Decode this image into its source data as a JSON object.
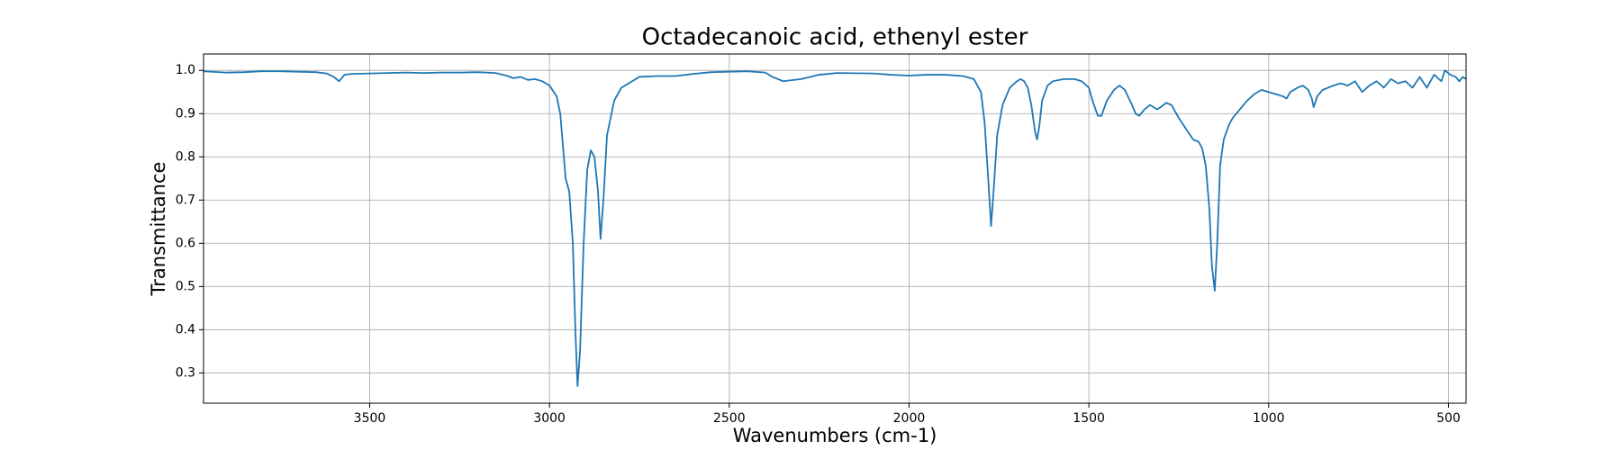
{
  "chart_data": {
    "type": "line",
    "title": "Octadecanoic acid, ethenyl ester",
    "x_label": "Wavenumbers (cm-1)",
    "y_label": "Transmittance",
    "xlim": [
      3962,
      451
    ],
    "ylim": [
      0.23,
      1.038
    ],
    "xticks": [
      3500,
      3000,
      2500,
      2000,
      1500,
      1000,
      500
    ],
    "yticks": [
      0.3,
      0.4,
      0.5,
      0.6,
      0.7,
      0.8,
      0.9,
      {
        "value": 1,
        "label": "1.0"
      }
    ],
    "grid": true,
    "x": [
      3962,
      3900,
      3850,
      3800,
      3750,
      3700,
      3650,
      3620,
      3600,
      3585,
      3570,
      3550,
      3500,
      3450,
      3400,
      3350,
      3300,
      3250,
      3200,
      3150,
      3120,
      3100,
      3080,
      3060,
      3040,
      3020,
      3000,
      2980,
      2970,
      2960,
      2955,
      2945,
      2935,
      2928,
      2922,
      2915,
      2905,
      2895,
      2885,
      2875,
      2865,
      2858,
      2850,
      2840,
      2820,
      2800,
      2770,
      2750,
      2700,
      2650,
      2600,
      2550,
      2500,
      2450,
      2400,
      2380,
      2350,
      2300,
      2250,
      2200,
      2100,
      2050,
      2000,
      1950,
      1900,
      1850,
      1820,
      1800,
      1790,
      1780,
      1772,
      1765,
      1755,
      1740,
      1720,
      1700,
      1690,
      1680,
      1670,
      1660,
      1650,
      1644,
      1638,
      1630,
      1615,
      1600,
      1570,
      1540,
      1520,
      1500,
      1490,
      1475,
      1465,
      1450,
      1430,
      1415,
      1400,
      1380,
      1370,
      1360,
      1345,
      1330,
      1310,
      1300,
      1285,
      1270,
      1250,
      1230,
      1210,
      1195,
      1185,
      1175,
      1165,
      1158,
      1150,
      1143,
      1135,
      1125,
      1110,
      1100,
      1080,
      1060,
      1040,
      1020,
      1000,
      980,
      960,
      950,
      940,
      920,
      905,
      890,
      880,
      875,
      865,
      850,
      820,
      800,
      780,
      760,
      740,
      720,
      700,
      680,
      660,
      640,
      620,
      600,
      580,
      560,
      540,
      520,
      510,
      495,
      480,
      470,
      460,
      451
    ],
    "series": [
      {
        "name": "Transmittance",
        "color": "#1f77b4",
        "values": [
          0.998,
          0.995,
          0.996,
          0.998,
          0.998,
          0.997,
          0.996,
          0.993,
          0.985,
          0.975,
          0.99,
          0.992,
          0.993,
          0.994,
          0.995,
          0.994,
          0.995,
          0.995,
          0.996,
          0.994,
          0.988,
          0.982,
          0.985,
          0.978,
          0.98,
          0.975,
          0.965,
          0.94,
          0.9,
          0.8,
          0.75,
          0.72,
          0.6,
          0.4,
          0.27,
          0.35,
          0.6,
          0.77,
          0.815,
          0.8,
          0.72,
          0.61,
          0.7,
          0.85,
          0.93,
          0.96,
          0.975,
          0.985,
          0.987,
          0.987,
          0.992,
          0.996,
          0.997,
          0.998,
          0.995,
          0.985,
          0.975,
          0.98,
          0.99,
          0.994,
          0.993,
          0.99,
          0.988,
          0.99,
          0.99,
          0.987,
          0.98,
          0.95,
          0.88,
          0.75,
          0.64,
          0.72,
          0.85,
          0.92,
          0.96,
          0.975,
          0.98,
          0.975,
          0.96,
          0.92,
          0.86,
          0.84,
          0.87,
          0.93,
          0.965,
          0.975,
          0.98,
          0.98,
          0.975,
          0.96,
          0.93,
          0.895,
          0.895,
          0.93,
          0.955,
          0.965,
          0.955,
          0.92,
          0.9,
          0.895,
          0.91,
          0.92,
          0.91,
          0.915,
          0.925,
          0.92,
          0.89,
          0.865,
          0.84,
          0.835,
          0.82,
          0.78,
          0.68,
          0.55,
          0.49,
          0.6,
          0.78,
          0.84,
          0.875,
          0.89,
          0.91,
          0.93,
          0.945,
          0.955,
          0.95,
          0.945,
          0.94,
          0.935,
          0.95,
          0.96,
          0.965,
          0.955,
          0.935,
          0.915,
          0.94,
          0.955,
          0.965,
          0.97,
          0.965,
          0.975,
          0.95,
          0.965,
          0.975,
          0.96,
          0.98,
          0.97,
          0.975,
          0.96,
          0.985,
          0.96,
          0.99,
          0.975,
          1.0,
          0.99,
          0.985,
          0.975,
          0.985,
          0.98
        ]
      }
    ]
  }
}
